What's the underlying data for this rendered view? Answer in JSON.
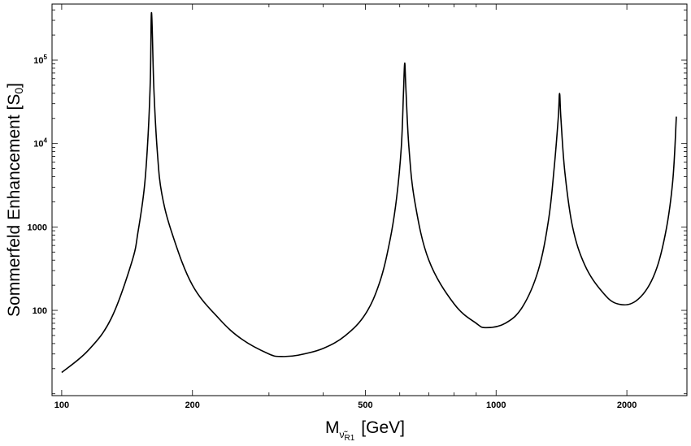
{
  "chart_data": {
    "type": "line",
    "title": "",
    "xlabel": {
      "main": "M",
      "sub_symbol": "ν̃",
      "sub_index": "R1",
      "unit": "[GeV]"
    },
    "ylabel": {
      "main": "Sommerfeld Enhancement [S",
      "sub": "0",
      "close": "]"
    },
    "x_scale": "log",
    "y_scale": "log",
    "xlim": [
      95,
      2750
    ],
    "ylim": [
      9.5,
      470000
    ],
    "x_ticks": [
      {
        "value": 100,
        "label": "100"
      },
      {
        "value": 200,
        "label": "200"
      },
      {
        "value": 500,
        "label": "500"
      },
      {
        "value": 1000,
        "label": "1000"
      },
      {
        "value": 2000,
        "label": "2000"
      }
    ],
    "y_ticks": [
      {
        "value": 100,
        "label": "100"
      },
      {
        "value": 1000,
        "label": "1000"
      },
      {
        "value": 10000,
        "base": "10",
        "exp": "4"
      },
      {
        "value": 100000,
        "base": "10",
        "exp": "5"
      }
    ],
    "grid": false,
    "legend": "none",
    "line_color": "#000000",
    "series": [
      {
        "x": [
          100,
          115,
          130,
          145,
          150,
          155,
          158,
          160,
          161,
          163,
          166,
          170,
          180,
          200,
          230,
          260,
          300,
          320,
          350,
          400,
          450,
          500,
          540,
          570,
          590,
          605,
          612,
          616,
          620,
          630,
          650,
          700,
          800,
          900,
          950,
          1050,
          1150,
          1250,
          1320,
          1360,
          1390,
          1400,
          1410,
          1440,
          1500,
          1600,
          1750,
          1900,
          2100,
          2300,
          2450,
          2550,
          2600
        ],
        "y": [
          18,
          33,
          80,
          380,
          900,
          3000,
          12000,
          60000,
          370000,
          45000,
          8000,
          2500,
          800,
          200,
          80,
          45,
          30,
          28,
          29,
          35,
          50,
          90,
          220,
          700,
          2200,
          9000,
          40000,
          92000,
          45000,
          9000,
          2000,
          400,
          120,
          70,
          62,
          70,
          110,
          300,
          1200,
          5000,
          20000,
          40000,
          20000,
          4500,
          1000,
          350,
          170,
          120,
          130,
          250,
          800,
          3500,
          21000
        ]
      }
    ]
  }
}
